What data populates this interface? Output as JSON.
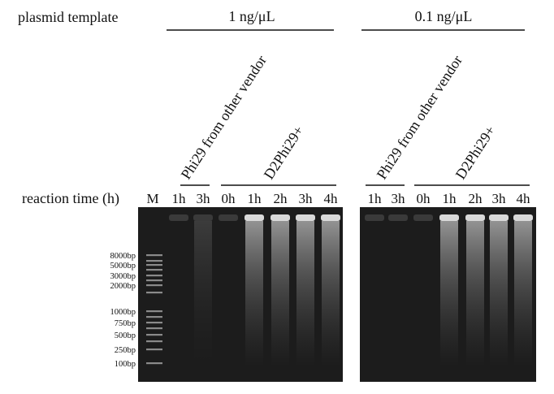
{
  "header": {
    "title": "plasmid template",
    "row_label": "reaction time (h)"
  },
  "panels": [
    {
      "concentration": "1 ng/μL",
      "groups": [
        {
          "label": "Phi29 from other vendor"
        },
        {
          "label": "D2Phi29+"
        }
      ],
      "lanes": [
        "M",
        "1h",
        "3h",
        "0h",
        "1h",
        "2h",
        "3h",
        "4h"
      ]
    },
    {
      "concentration": "0.1 ng/μL",
      "groups": [
        {
          "label": "Phi29 from other vendor"
        },
        {
          "label": "D2Phi29+"
        }
      ],
      "lanes": [
        "1h",
        "3h",
        "0h",
        "1h",
        "2h",
        "3h",
        "4h"
      ]
    }
  ],
  "ladder": [
    "8000bp",
    "5000bp",
    "3000bp",
    "2000bp",
    "1000bp",
    "750bp",
    "500bp",
    "250bp",
    "100bp"
  ]
}
